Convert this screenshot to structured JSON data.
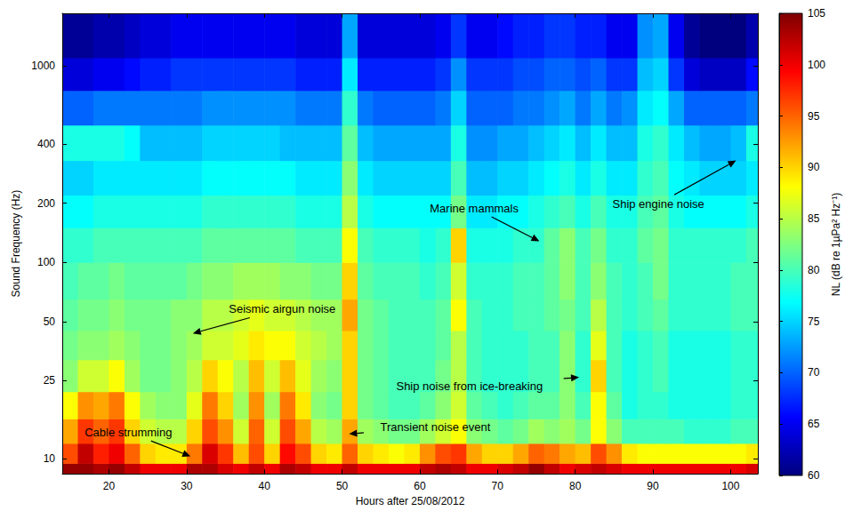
{
  "chart_data": {
    "type": "heatmap",
    "x_label": "Hours after 25/08/2012",
    "y_label": "Sound Frequency (Hz)",
    "xlim": [
      14,
      103.5
    ],
    "ylim": [
      8.4,
      1850
    ],
    "xticks": [
      20,
      30,
      40,
      50,
      60,
      70,
      80,
      90,
      100
    ],
    "yticks": [
      10,
      25,
      50,
      100,
      200,
      400,
      1000
    ],
    "log": "y",
    "grid": false,
    "x_edges": [
      14,
      16,
      18,
      20,
      22,
      24,
      26,
      28,
      30,
      32,
      34,
      36,
      38,
      40,
      42,
      44,
      46,
      48,
      50,
      52,
      54,
      56,
      58,
      60,
      62,
      64,
      66,
      68,
      70,
      72,
      74,
      76,
      78,
      80,
      82,
      84,
      86,
      88,
      90,
      92,
      94,
      96,
      98,
      100,
      102,
      104
    ],
    "y_edges": [
      8.4,
      9.5,
      12,
      16,
      22,
      32,
      45,
      65,
      100,
      150,
      220,
      330,
      500,
      750,
      1100,
      1850
    ],
    "values": [
      [
        104,
        104,
        103,
        104,
        102,
        100,
        100,
        100,
        103,
        103,
        101,
        100,
        102,
        100,
        103,
        102,
        100,
        100,
        102,
        100,
        100,
        100,
        100,
        102,
        103,
        102,
        100,
        100,
        101,
        102,
        104,
        102,
        100,
        101,
        102,
        101,
        100,
        100,
        100,
        100,
        100,
        100,
        100,
        100,
        101
      ],
      [
        96,
        102,
        98,
        100,
        95,
        90,
        89,
        89,
        94,
        101,
        97,
        91,
        96,
        90,
        99,
        96,
        90,
        89,
        95,
        90,
        89,
        88,
        89,
        93,
        96,
        97,
        92,
        90,
        90,
        92,
        95,
        94,
        92,
        91,
        96,
        93,
        89,
        88,
        88,
        88,
        88,
        88,
        88,
        88,
        89
      ],
      [
        92,
        97,
        95,
        97,
        90,
        86,
        85,
        85,
        90,
        96,
        93,
        86,
        95,
        86,
        96,
        92,
        85,
        84,
        92,
        84,
        83,
        82,
        82,
        84,
        86,
        88,
        83,
        82,
        81,
        82,
        84,
        83,
        84,
        82,
        88,
        83,
        80,
        80,
        80,
        80,
        79,
        79,
        79,
        80,
        80
      ],
      [
        88,
        93,
        92,
        94,
        88,
        84,
        83,
        83,
        87,
        94,
        90,
        84,
        93,
        84,
        94,
        89,
        83,
        82,
        90,
        82,
        81,
        80,
        80,
        81,
        83,
        86,
        81,
        80,
        79,
        80,
        81,
        81,
        83,
        80,
        88,
        81,
        78,
        79,
        79,
        78,
        78,
        78,
        78,
        79,
        79
      ],
      [
        83,
        86,
        86,
        88,
        84,
        82,
        82,
        83,
        85,
        90,
        88,
        85,
        91,
        86,
        91,
        87,
        84,
        83,
        90,
        82,
        81,
        80,
        80,
        80,
        82,
        85,
        80,
        79,
        79,
        79,
        80,
        80,
        83,
        79,
        90,
        80,
        78,
        79,
        80,
        78,
        78,
        78,
        78,
        79,
        79
      ],
      [
        82,
        83,
        83,
        84,
        83,
        82,
        82,
        83,
        84,
        86,
        86,
        87,
        89,
        88,
        88,
        86,
        85,
        84,
        90,
        82,
        81,
        80,
        80,
        80,
        81,
        85,
        80,
        79,
        79,
        79,
        80,
        80,
        83,
        79,
        87,
        80,
        78,
        79,
        80,
        78,
        78,
        78,
        78,
        79,
        79
      ],
      [
        81,
        82,
        82,
        83,
        82,
        82,
        82,
        83,
        83,
        85,
        85,
        86,
        87,
        86,
        86,
        85,
        84,
        84,
        92,
        82,
        81,
        80,
        80,
        80,
        81,
        88,
        80,
        79,
        79,
        80,
        80,
        81,
        82,
        80,
        85,
        80,
        79,
        80,
        81,
        79,
        79,
        79,
        79,
        80,
        80
      ],
      [
        80,
        81,
        81,
        82,
        81,
        81,
        81,
        81,
        82,
        83,
        83,
        84,
        84,
        84,
        83,
        83,
        82,
        82,
        90,
        81,
        80,
        80,
        80,
        79,
        80,
        86,
        79,
        79,
        79,
        80,
        80,
        81,
        83,
        80,
        83,
        80,
        79,
        80,
        82,
        79,
        79,
        79,
        79,
        80,
        80
      ],
      [
        79,
        79,
        80,
        80,
        80,
        80,
        80,
        80,
        80,
        81,
        81,
        81,
        81,
        81,
        81,
        80,
        80,
        80,
        88,
        80,
        79,
        79,
        79,
        78,
        79,
        90,
        78,
        78,
        78,
        79,
        79,
        81,
        83,
        80,
        82,
        79,
        79,
        81,
        82,
        79,
        79,
        79,
        79,
        79,
        80
      ],
      [
        77,
        77,
        78,
        78,
        78,
        78,
        78,
        78,
        78,
        79,
        79,
        79,
        79,
        79,
        79,
        78,
        78,
        78,
        85,
        78,
        77,
        77,
        77,
        77,
        77,
        82,
        76,
        76,
        77,
        77,
        78,
        79,
        80,
        78,
        80,
        78,
        78,
        80,
        81,
        78,
        77,
        77,
        77,
        77,
        78
      ],
      [
        75,
        75,
        76,
        76,
        76,
        76,
        76,
        76,
        76,
        77,
        77,
        77,
        77,
        77,
        77,
        76,
        76,
        76,
        83,
        76,
        75,
        75,
        75,
        75,
        75,
        80,
        74,
        74,
        75,
        75,
        76,
        77,
        78,
        76,
        78,
        76,
        76,
        79,
        80,
        77,
        76,
        75,
        75,
        75,
        76
      ],
      [
        78,
        78,
        78,
        78,
        77,
        74,
        74,
        74,
        74,
        75,
        75,
        75,
        75,
        75,
        74,
        74,
        74,
        74,
        81,
        74,
        73,
        73,
        73,
        73,
        73,
        78,
        72,
        72,
        73,
        73,
        74,
        75,
        76,
        74,
        76,
        74,
        74,
        78,
        79,
        76,
        74,
        73,
        73,
        74,
        78
      ],
      [
        70,
        70,
        71,
        71,
        71,
        71,
        71,
        71,
        71,
        72,
        72,
        72,
        72,
        72,
        72,
        71,
        71,
        71,
        79,
        71,
        70,
        70,
        70,
        70,
        71,
        75,
        70,
        70,
        70,
        71,
        71,
        72,
        73,
        71,
        73,
        71,
        72,
        76,
        77,
        73,
        70,
        70,
        70,
        70,
        71
      ],
      [
        64,
        64,
        65,
        65,
        66,
        67,
        67,
        68,
        68,
        68,
        68,
        68,
        68,
        68,
        68,
        67,
        67,
        67,
        76,
        67,
        67,
        67,
        67,
        67,
        68,
        72,
        68,
        68,
        68,
        69,
        69,
        70,
        70,
        69,
        70,
        68,
        68,
        74,
        75,
        68,
        64,
        63,
        63,
        63,
        66
      ],
      [
        61,
        61,
        62,
        62,
        63,
        64,
        64,
        65,
        65,
        65,
        65,
        65,
        65,
        65,
        65,
        64,
        64,
        64,
        73,
        64,
        64,
        64,
        64,
        64,
        65,
        68,
        65,
        65,
        66,
        67,
        67,
        68,
        68,
        67,
        67,
        65,
        65,
        72,
        73,
        65,
        61,
        60,
        60,
        60,
        62
      ]
    ],
    "colorbar": {
      "label": "NL (dB re 1µPa² Hz⁻¹)",
      "range": [
        60,
        105
      ],
      "ticks": [
        60,
        65,
        70,
        75,
        80,
        85,
        90,
        95,
        100,
        105
      ],
      "colors": [
        "#00007f",
        "#0000ff",
        "#007fff",
        "#00ffff",
        "#7fff7f",
        "#ffff00",
        "#ff7f00",
        "#ff0000",
        "#7f0000"
      ]
    },
    "annotations": [
      {
        "text": "Cable strumming",
        "x": 30.5,
        "y": 10.3,
        "text_x": 22.5,
        "text_y": 13.7
      },
      {
        "text": "Seismic airgun noise",
        "x": 30.8,
        "y": 43.5,
        "text_x": 42.3,
        "text_y": 58
      },
      {
        "text": "Transient noise event",
        "x": 50.9,
        "y": 13.4,
        "text_x": 62,
        "text_y": 14.5
      },
      {
        "text": "Marine mammals",
        "x": 75.4,
        "y": 128,
        "text_x": 67,
        "text_y": 189
      },
      {
        "text": "Ship noise from ice-breaking",
        "x": 80.5,
        "y": 26,
        "text_x": 66.4,
        "text_y": 23.5
      },
      {
        "text": "Ship engine noise",
        "x": 100.7,
        "y": 330,
        "text_x": 90.7,
        "text_y": 199
      }
    ]
  }
}
